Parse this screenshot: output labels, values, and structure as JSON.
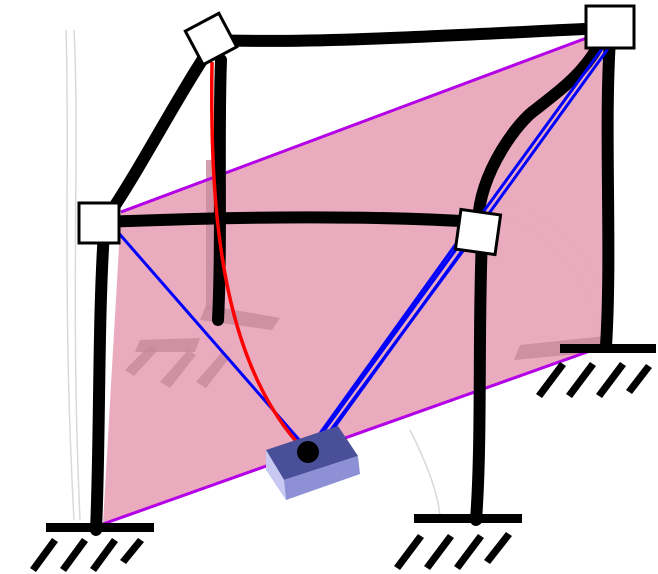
{
  "diagram": {
    "kind": "cable-driven parallel mechanism in a portal frame",
    "elements": [
      "frame",
      "tilted-plane",
      "pulley-blocks",
      "cables",
      "end-effector",
      "ground-supports"
    ]
  },
  "colors": {
    "frame": "#000000",
    "plane_fill": "#e9a6bc",
    "plane_edge": "#b400e6",
    "cable_blue": "#0000ff",
    "cable_red": "#ff0000",
    "pulley_fill": "#ffffff",
    "effector_top": "#4a4f9a",
    "effector_front": "#c7c9f2",
    "effector_side": "#8d90d4",
    "effector_joint": "#000000",
    "shadow": "#c78a9c",
    "ghost": "#d9d9d9"
  },
  "icons": {
    "pulley": "square-pulley-icon",
    "ground": "hatched-ground-support-icon",
    "effector": "end-effector-block-icon"
  }
}
